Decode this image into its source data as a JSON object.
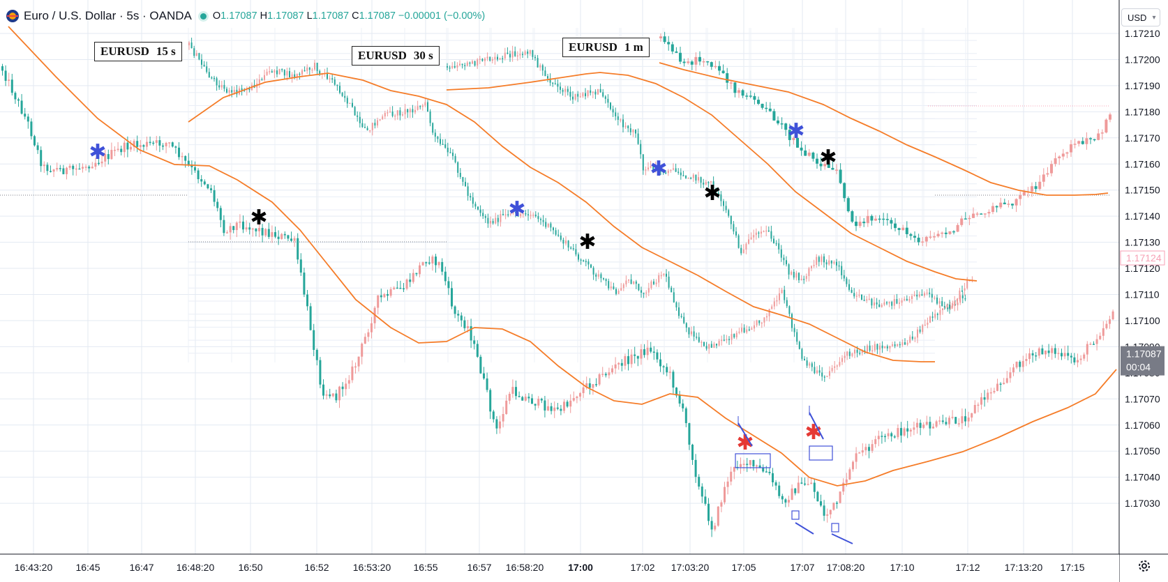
{
  "header": {
    "symbol": "Euro / U.S. Dollar · 5s · OANDA",
    "open_label": "O",
    "open": "1.17087",
    "high_label": "H",
    "high": "1.17087",
    "low_label": "L",
    "low": "1.17087",
    "close_label": "C",
    "close": "1.17087",
    "change": "−0.00001 (−0.00%)"
  },
  "currency_selector": "USD",
  "timeframe_labels": [
    {
      "symbol": "EURUSD",
      "tf": "15 s"
    },
    {
      "symbol": "EURUSD",
      "tf": "30 s"
    },
    {
      "symbol": "EURUSD",
      "tf": "1 m"
    }
  ],
  "colors": {
    "up": "#ef9a9a",
    "down": "#26a69a",
    "ma": "#f57c28",
    "grid": "#e3e9f2",
    "marker_blue": "#3f51d8",
    "marker_black": "#000000",
    "marker_red": "#e53935",
    "price_tag_bg": "#787b86",
    "pink_tag": "#f7a1b5"
  },
  "price_axis": {
    "ticks": [
      "1.17210",
      "1.17200",
      "1.17190",
      "1.17180",
      "1.17170",
      "1.17160",
      "1.17150",
      "1.17140",
      "1.17130",
      "1.17120",
      "1.17110",
      "1.17100",
      "1.17090",
      "1.17080",
      "1.17070",
      "1.17060",
      "1.17050",
      "1.17040",
      "1.17030"
    ],
    "current_price": "1.17087",
    "countdown": "00:04",
    "pink_level": "1.17124"
  },
  "time_axis": {
    "ticks": [
      "16:43:20",
      "16:45",
      "16:47",
      "16:48:20",
      "16:50",
      "16:52",
      "16:53:20",
      "16:55",
      "16:57",
      "16:58:20",
      "17:00",
      "17:02",
      "17:03:20",
      "17:05",
      "17:07",
      "17:08:20",
      "17:10",
      "17:12",
      "17:13:20",
      "17:15"
    ],
    "bold_tick": "17:00"
  },
  "chart_data": {
    "type": "candlestick",
    "symbol": "EURUSD",
    "ylim": [
      1.17028,
      1.17215
    ],
    "main_series_5s_close_path": [
      [
        0,
        1.1719
      ],
      [
        5,
        1.17175
      ],
      [
        10,
        1.1716
      ],
      [
        15,
        1.1716
      ],
      [
        20,
        1.17165
      ],
      [
        25,
        1.17168
      ],
      [
        30,
        1.17168
      ],
      [
        35,
        1.1717
      ],
      [
        40,
        1.1714
      ],
      [
        45,
        1.1713
      ],
      [
        50,
        1.17138
      ],
      [
        55,
        1.17132
      ],
      [
        60,
        1.17125
      ],
      [
        65,
        1.171
      ],
      [
        70,
        1.1706
      ],
      [
        75,
        1.1707
      ],
      [
        80,
        1.1707
      ],
      [
        85,
        1.171
      ],
      [
        90,
        1.1712
      ],
      [
        95,
        1.1713
      ],
      [
        100,
        1.17115
      ],
      [
        105,
        1.1709
      ],
      [
        110,
        1.1707
      ],
      [
        115,
        1.1708
      ],
      [
        120,
        1.1707
      ],
      [
        125,
        1.1707
      ],
      [
        130,
        1.1709
      ],
      [
        135,
        1.171
      ],
      [
        140,
        1.1712
      ],
      [
        145,
        1.1711
      ],
      [
        150,
        1.1708
      ],
      [
        155,
        1.1705
      ],
      [
        160,
        1.1705
      ],
      [
        165,
        1.1706
      ],
      [
        170,
        1.17055
      ],
      [
        175,
        1.1704
      ],
      [
        180,
        1.1706
      ],
      [
        185,
        1.1704
      ],
      [
        190,
        1.1706
      ],
      [
        195,
        1.1707
      ],
      [
        200,
        1.1708
      ],
      [
        205,
        1.1707
      ],
      [
        210,
        1.1708
      ],
      [
        215,
        1.1709
      ],
      [
        220,
        1.171
      ],
      [
        225,
        1.1709
      ],
      [
        230,
        1.1711
      ]
    ],
    "annotations": [
      {
        "type": "marker",
        "symbol": "✱",
        "color": "blue"
      },
      {
        "type": "marker",
        "symbol": "✱",
        "color": "black"
      },
      {
        "type": "marker",
        "symbol": "✱",
        "color": "red"
      }
    ]
  }
}
